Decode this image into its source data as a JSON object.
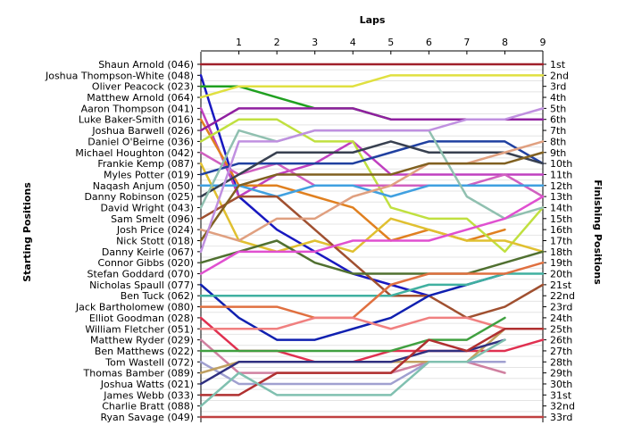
{
  "chart_data": {
    "type": "line",
    "title": "",
    "xlabel": "Laps",
    "ylabel_left": "Starting Positions",
    "ylabel_right": "Finishing Positions",
    "x": [
      0,
      1,
      2,
      3,
      4,
      5,
      6,
      7,
      8,
      9
    ],
    "xticks": [
      "1",
      "2",
      "3",
      "4",
      "5",
      "6",
      "7",
      "8",
      "9"
    ],
    "ylim": [
      1,
      33
    ],
    "y_inverted": true,
    "grid": true,
    "legend": "none",
    "start_labels": [
      "Shaun Arnold (046)",
      "Joshua Thompson-White (048)",
      "Oliver Peacock (023)",
      "Matthew Arnold (064)",
      "Aaron Thompson (041)",
      "Luke Baker-Smith (016)",
      "Joshua Barwell (026)",
      "Daniel O'Beirne (036)",
      "Michael Houghton (042)",
      "Frankie Kemp (087)",
      "Myles Potter (019)",
      "Naqash Anjum (050)",
      "Danny Robinson (025)",
      "David Wright (043)",
      "Sam Smelt (096)",
      "Josh Price (024)",
      "Nick Stott (018)",
      "Danny Keirle (067)",
      "Connor Gibbs (020)",
      "Stefan Goddard (070)",
      "Nicholas Spaull (077)",
      "Ben Tuck (062)",
      "Jack Bartholomew (080)",
      "Elliot Goodman (028)",
      "William Fletcher (051)",
      "Matthew Ryder (029)",
      "Ben Matthews (022)",
      "Tom Wastell (072)",
      "Thomas Bamber (089)",
      "Joshua Watts (021)",
      "James Webb (033)",
      "Charlie Bratt (088)",
      "Ryan Savage (049)"
    ],
    "finish_labels": [
      "1st",
      "2nd",
      "3rd",
      "4th",
      "5th",
      "6th",
      "7th",
      "8th",
      "9th",
      "10th",
      "11th",
      "12th",
      "13th",
      "14th",
      "15th",
      "16th",
      "17th",
      "18th",
      "19th",
      "20th",
      "21st",
      "22nd",
      "23rd",
      "24th",
      "25th",
      "26th",
      "27th",
      "28th",
      "29th",
      "30th",
      "31st",
      "32nd",
      "33rd"
    ],
    "series": [
      {
        "color": "#a0202a",
        "values": [
          1,
          1,
          1,
          1,
          1,
          1,
          1,
          1,
          1,
          1
        ]
      },
      {
        "color": "#1818c0",
        "values": [
          2,
          13,
          16,
          18,
          20,
          21,
          22,
          null,
          null,
          null
        ]
      },
      {
        "color": "#20a020",
        "values": [
          3,
          3,
          4,
          5,
          5,
          6,
          6,
          6,
          6,
          null
        ]
      },
      {
        "color": "#e0e040",
        "values": [
          4,
          3,
          3,
          3,
          3,
          2,
          2,
          2,
          2,
          2
        ]
      },
      {
        "color": "#c040c0",
        "values": [
          5,
          13,
          11,
          10,
          8,
          11,
          11,
          11,
          11,
          11
        ]
      },
      {
        "color": "#e08020",
        "values": [
          6,
          12,
          12,
          13,
          14,
          17,
          16,
          17,
          16,
          null
        ]
      },
      {
        "color": "#9020a0",
        "values": [
          7,
          5,
          5,
          5,
          5,
          6,
          6,
          6,
          6,
          6
        ]
      },
      {
        "color": "#c0e040",
        "values": [
          8,
          6,
          6,
          8,
          8,
          14,
          15,
          15,
          18,
          14
        ]
      },
      {
        "color": "#d060c0",
        "values": [
          9,
          11,
          10,
          12,
          12,
          12,
          12,
          12,
          11,
          13
        ]
      },
      {
        "color": "#e0c030",
        "values": [
          10,
          17,
          18,
          17,
          18,
          15,
          16,
          17,
          17,
          18
        ]
      },
      {
        "color": "#2040a0",
        "values": [
          11,
          10,
          10,
          10,
          10,
          9,
          8,
          8,
          8,
          10
        ]
      },
      {
        "color": "#40a0e0",
        "values": [
          12,
          12,
          13,
          12,
          12,
          13,
          12,
          12,
          12,
          12
        ]
      },
      {
        "color": "#384050",
        "values": [
          13,
          11,
          9,
          9,
          9,
          8,
          9,
          9,
          9,
          10
        ]
      },
      {
        "color": "#90c0b0",
        "values": [
          14,
          7,
          8,
          7,
          7,
          7,
          7,
          13,
          15,
          14
        ]
      },
      {
        "color": "#a05030",
        "values": [
          15,
          13,
          13,
          16,
          19,
          22,
          22,
          24,
          23,
          21
        ]
      },
      {
        "color": "#e0a080",
        "values": [
          16,
          17,
          15,
          15,
          13,
          12,
          10,
          10,
          9,
          8
        ]
      },
      {
        "color": "#806020",
        "values": [
          17,
          12,
          11,
          11,
          11,
          11,
          10,
          10,
          10,
          9
        ]
      },
      {
        "color": "#c090e0",
        "values": [
          18,
          8,
          8,
          7,
          7,
          7,
          7,
          6,
          6,
          5
        ]
      },
      {
        "color": "#507030",
        "values": [
          19,
          18,
          17,
          19,
          20,
          20,
          20,
          20,
          19,
          18
        ]
      },
      {
        "color": "#e050d0",
        "values": [
          20,
          18,
          18,
          18,
          17,
          17,
          17,
          16,
          15,
          13
        ]
      },
      {
        "color": "#1020b0",
        "values": [
          21,
          24,
          26,
          26,
          25,
          24,
          22,
          21,
          20,
          null
        ]
      },
      {
        "color": "#40b0a0",
        "values": [
          22,
          22,
          22,
          22,
          22,
          22,
          21,
          21,
          20,
          20
        ]
      },
      {
        "color": "#e07040",
        "values": [
          23,
          23,
          23,
          24,
          24,
          21,
          20,
          20,
          20,
          19
        ]
      },
      {
        "color": "#e03050",
        "values": [
          24,
          27,
          27,
          28,
          28,
          27,
          27,
          27,
          27,
          26
        ]
      },
      {
        "color": "#f08080",
        "values": [
          25,
          25,
          25,
          24,
          24,
          25,
          24,
          24,
          25,
          null
        ]
      },
      {
        "color": "#d080a0",
        "values": [
          26,
          29,
          29,
          29,
          29,
          29,
          28,
          28,
          29,
          null
        ]
      },
      {
        "color": "#40a040",
        "values": [
          27,
          27,
          27,
          27,
          27,
          27,
          26,
          26,
          24,
          null
        ]
      },
      {
        "color": "#a0a0d0",
        "values": [
          28,
          30,
          30,
          30,
          30,
          30,
          28,
          28,
          28,
          null
        ]
      },
      {
        "color": "#c0a060",
        "values": [
          29,
          28,
          28,
          28,
          28,
          28,
          28,
          28,
          25,
          25
        ]
      },
      {
        "color": "#303080",
        "values": [
          30,
          28,
          28,
          28,
          28,
          28,
          27,
          27,
          26,
          null
        ]
      },
      {
        "color": "#b03030",
        "values": [
          31,
          31,
          29,
          29,
          29,
          29,
          26,
          27,
          25,
          25
        ]
      },
      {
        "color": "#80c0b0",
        "values": [
          32,
          29,
          31,
          31,
          31,
          31,
          28,
          28,
          26,
          null
        ]
      },
      {
        "color": "#c04040",
        "values": [
          33,
          33,
          33,
          33,
          33,
          33,
          33,
          33,
          33,
          33
        ]
      }
    ]
  }
}
